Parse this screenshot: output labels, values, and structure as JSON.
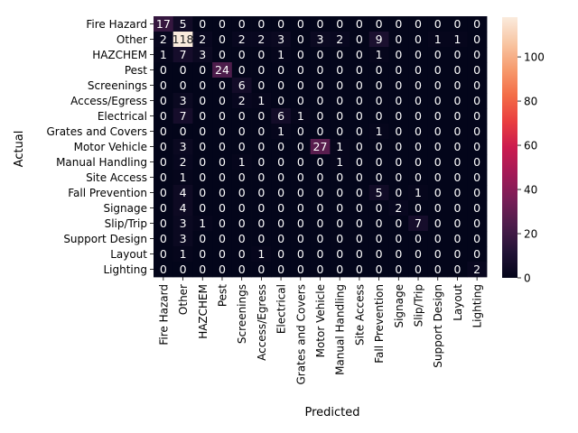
{
  "chart_data": {
    "type": "heatmap",
    "title": "",
    "xlabel": "Predicted",
    "ylabel": "Actual",
    "x_categories": [
      "Fire Hazard",
      "Other",
      "HAZCHEM",
      "Pest",
      "Screenings",
      "Access/Egress",
      "Electrical",
      "Grates and Covers",
      "Motor Vehicle",
      "Manual Handling",
      "Site Access",
      "Fall Prevention",
      "Signage",
      "Slip/Trip",
      "Support Design",
      "Layout",
      "Lighting"
    ],
    "y_categories": [
      "Fire Hazard",
      "Other",
      "HAZCHEM",
      "Pest",
      "Screenings",
      "Access/Egress",
      "Electrical",
      "Grates and Covers",
      "Motor Vehicle",
      "Manual Handling",
      "Site Access",
      "Fall Prevention",
      "Signage",
      "Slip/Trip",
      "Support Design",
      "Layout",
      "Lighting"
    ],
    "matrix": [
      [
        17,
        5,
        0,
        0,
        0,
        0,
        0,
        0,
        0,
        0,
        0,
        0,
        0,
        0,
        0,
        0,
        0
      ],
      [
        2,
        118,
        2,
        0,
        2,
        2,
        3,
        0,
        3,
        2,
        0,
        9,
        0,
        0,
        1,
        1,
        0
      ],
      [
        1,
        7,
        3,
        0,
        0,
        0,
        1,
        0,
        0,
        0,
        0,
        1,
        0,
        0,
        0,
        0,
        0
      ],
      [
        0,
        0,
        0,
        24,
        0,
        0,
        0,
        0,
        0,
        0,
        0,
        0,
        0,
        0,
        0,
        0,
        0
      ],
      [
        0,
        0,
        0,
        0,
        6,
        0,
        0,
        0,
        0,
        0,
        0,
        0,
        0,
        0,
        0,
        0,
        0
      ],
      [
        0,
        3,
        0,
        0,
        2,
        1,
        0,
        0,
        0,
        0,
        0,
        0,
        0,
        0,
        0,
        0,
        0
      ],
      [
        0,
        7,
        0,
        0,
        0,
        0,
        6,
        1,
        0,
        0,
        0,
        0,
        0,
        0,
        0,
        0,
        0
      ],
      [
        0,
        0,
        0,
        0,
        0,
        0,
        1,
        0,
        0,
        0,
        0,
        1,
        0,
        0,
        0,
        0,
        0
      ],
      [
        0,
        3,
        0,
        0,
        0,
        0,
        0,
        0,
        27,
        1,
        0,
        0,
        0,
        0,
        0,
        0,
        0
      ],
      [
        0,
        2,
        0,
        0,
        1,
        0,
        0,
        0,
        0,
        1,
        0,
        0,
        0,
        0,
        0,
        0,
        0
      ],
      [
        0,
        1,
        0,
        0,
        0,
        0,
        0,
        0,
        0,
        0,
        0,
        0,
        0,
        0,
        0,
        0,
        0
      ],
      [
        0,
        4,
        0,
        0,
        0,
        0,
        0,
        0,
        0,
        0,
        0,
        5,
        0,
        1,
        0,
        0,
        0
      ],
      [
        0,
        4,
        0,
        0,
        0,
        0,
        0,
        0,
        0,
        0,
        0,
        0,
        2,
        0,
        0,
        0,
        0
      ],
      [
        0,
        3,
        1,
        0,
        0,
        0,
        0,
        0,
        0,
        0,
        0,
        0,
        0,
        7,
        0,
        0,
        0
      ],
      [
        0,
        3,
        0,
        0,
        0,
        0,
        0,
        0,
        0,
        0,
        0,
        0,
        0,
        0,
        0,
        0,
        0
      ],
      [
        0,
        1,
        0,
        0,
        0,
        1,
        0,
        0,
        0,
        0,
        0,
        0,
        0,
        0,
        0,
        0,
        0
      ],
      [
        0,
        0,
        0,
        0,
        0,
        0,
        0,
        0,
        0,
        0,
        0,
        0,
        0,
        0,
        0,
        0,
        2
      ]
    ],
    "value_range": [
      0,
      118
    ],
    "colorbar_ticks": [
      0,
      20,
      40,
      60,
      80,
      100
    ],
    "colormap": "rocket",
    "grid": false,
    "legend": "colorbar-right"
  }
}
